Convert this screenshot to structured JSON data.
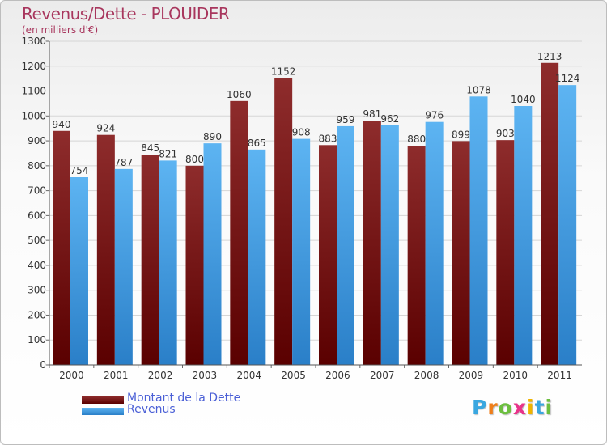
{
  "colors": {
    "dette": "#6a0a0a",
    "dette_light": "#9a3a3a",
    "revenus": "#2e86d0",
    "revenus_light": "#5cb0f0",
    "title": "#a8365d",
    "legend_text": "#4a5fd6"
  },
  "logo": {
    "letters": [
      "P",
      "r",
      "o",
      "x",
      "i",
      "t",
      "i"
    ],
    "letter_colors": [
      "#3aa7e0",
      "#ef7e1a",
      "#6cbf3f",
      "#e8338a",
      "#f0b400",
      "#3aa7e0",
      "#6cbf3f"
    ]
  },
  "chart_data": {
    "type": "bar",
    "title": "Revenus/Dette - PLOUIDER",
    "subtitle": "(en milliers d'€)",
    "xlabel": "",
    "ylabel": "",
    "ylim": [
      0,
      1300
    ],
    "ytick_step": 100,
    "yticks": [
      "0",
      "100",
      "200",
      "300",
      "400",
      "500",
      "600",
      "700",
      "800",
      "900",
      "1000",
      "1100",
      "1200",
      "1300"
    ],
    "grid": true,
    "legend_position": "bottom-left",
    "categories": [
      "2000",
      "2001",
      "2002",
      "2003",
      "2004",
      "2005",
      "2006",
      "2007",
      "2008",
      "2009",
      "2010",
      "2011"
    ],
    "series": [
      {
        "name": "Montant de la Dette",
        "values": [
          940,
          924,
          845,
          800,
          1060,
          1152,
          883,
          981,
          880,
          899,
          903,
          1213
        ]
      },
      {
        "name": "Revenus",
        "values": [
          754,
          787,
          821,
          890,
          865,
          908,
          959,
          962,
          976,
          1078,
          1040,
          1124
        ]
      }
    ]
  }
}
